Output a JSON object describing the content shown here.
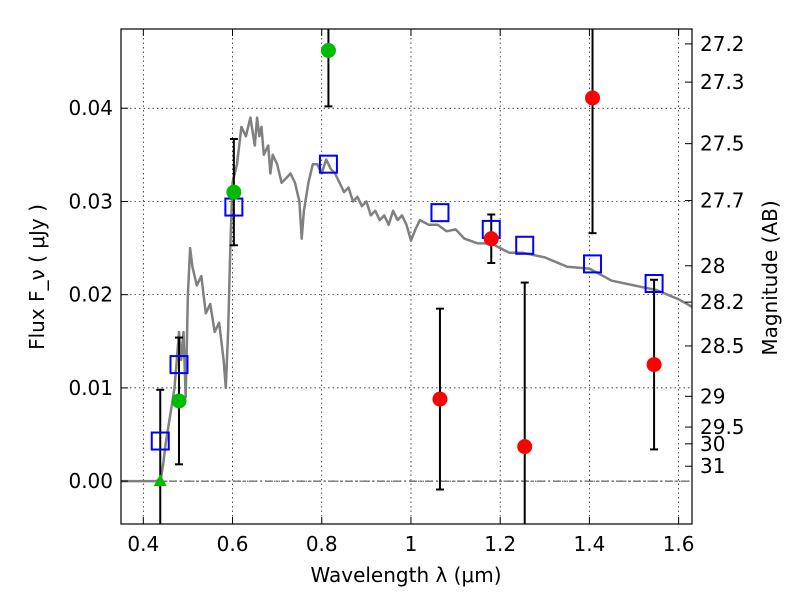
{
  "chart_data": {
    "type": "scatter",
    "xlabel": "Wavelength  λ (μm)",
    "ylabel": "Flux  F_ν  ( μJy )",
    "ylabel_right": "Magnitude (AB)",
    "xlim": [
      0.35,
      1.63
    ],
    "ylim": [
      -0.0046,
      0.0485
    ],
    "grid": true,
    "x_ticks": [
      {
        "value": 0.4,
        "label": "0.4"
      },
      {
        "value": 0.6,
        "label": "0.6"
      },
      {
        "value": 0.8,
        "label": "0.8"
      },
      {
        "value": 1.0,
        "label": "1"
      },
      {
        "value": 1.2,
        "label": "1.2"
      },
      {
        "value": 1.4,
        "label": "1.4"
      },
      {
        "value": 1.6,
        "label": "1.6"
      }
    ],
    "y_ticks": [
      {
        "value": 0.0,
        "label": "0.00"
      },
      {
        "value": 0.01,
        "label": "0.01"
      },
      {
        "value": 0.02,
        "label": "0.02"
      },
      {
        "value": 0.03,
        "label": "0.03"
      },
      {
        "value": 0.04,
        "label": "0.04"
      }
    ],
    "mag_ticks": [
      {
        "value": 0.0469,
        "label": "27.2"
      },
      {
        "value": 0.0428,
        "label": "27.3"
      },
      {
        "value": 0.0362,
        "label": "27.5"
      },
      {
        "value": 0.0301,
        "label": "27.7"
      },
      {
        "value": 0.0231,
        "label": "28"
      },
      {
        "value": 0.0192,
        "label": "28.2"
      },
      {
        "value": 0.0145,
        "label": "28.5"
      },
      {
        "value": 0.0091,
        "label": "29"
      },
      {
        "value": 0.0058,
        "label": "29.5"
      },
      {
        "value": 0.004,
        "label": "30"
      },
      {
        "value": 0.0016,
        "label": "31"
      }
    ],
    "series": [
      {
        "name": "model spectrum",
        "kind": "line",
        "color": "#808080",
        "x": [
          0.35,
          0.43,
          0.44,
          0.445,
          0.45,
          0.46,
          0.47,
          0.475,
          0.48,
          0.485,
          0.49,
          0.495,
          0.5,
          0.505,
          0.51,
          0.52,
          0.53,
          0.54,
          0.55,
          0.56,
          0.57,
          0.58,
          0.585,
          0.59,
          0.595,
          0.6,
          0.61,
          0.62,
          0.63,
          0.64,
          0.65,
          0.655,
          0.66,
          0.665,
          0.67,
          0.68,
          0.685,
          0.69,
          0.7,
          0.71,
          0.72,
          0.73,
          0.74,
          0.75,
          0.755,
          0.76,
          0.77,
          0.78,
          0.79,
          0.8,
          0.81,
          0.82,
          0.83,
          0.84,
          0.85,
          0.86,
          0.87,
          0.88,
          0.89,
          0.9,
          0.91,
          0.92,
          0.93,
          0.94,
          0.95,
          0.96,
          0.97,
          0.98,
          0.99,
          1.0,
          1.01,
          1.02,
          1.04,
          1.06,
          1.08,
          1.1,
          1.12,
          1.15,
          1.18,
          1.2,
          1.22,
          1.25,
          1.3,
          1.35,
          1.4,
          1.45,
          1.5,
          1.55,
          1.6,
          1.63
        ],
        "y": [
          0.0,
          0.0,
          0.0004,
          0.002,
          0.004,
          0.007,
          0.01,
          0.013,
          0.016,
          0.013,
          0.016,
          0.009,
          0.02,
          0.025,
          0.023,
          0.021,
          0.022,
          0.018,
          0.019,
          0.016,
          0.017,
          0.013,
          0.01,
          0.016,
          0.025,
          0.032,
          0.034,
          0.038,
          0.037,
          0.039,
          0.036,
          0.039,
          0.037,
          0.038,
          0.035,
          0.036,
          0.033,
          0.035,
          0.034,
          0.032,
          0.0325,
          0.033,
          0.032,
          0.03,
          0.026,
          0.029,
          0.032,
          0.034,
          0.034,
          0.033,
          0.0345,
          0.0335,
          0.033,
          0.032,
          0.031,
          0.0315,
          0.03,
          0.0305,
          0.0295,
          0.03,
          0.0285,
          0.029,
          0.028,
          0.0285,
          0.0275,
          0.029,
          0.028,
          0.0285,
          0.0275,
          0.0258,
          0.027,
          0.028,
          0.0275,
          0.0275,
          0.0268,
          0.027,
          0.026,
          0.0255,
          0.0255,
          0.025,
          0.0245,
          0.0245,
          0.024,
          0.023,
          0.0228,
          0.0215,
          0.021,
          0.0205,
          0.0195,
          0.0187
        ]
      },
      {
        "name": "model photometry",
        "kind": "open-square",
        "color": "#0000ff",
        "x": [
          0.438,
          0.48,
          0.603,
          0.815,
          1.065,
          1.18,
          1.255,
          1.407,
          1.545
        ],
        "y": [
          0.0043,
          0.0125,
          0.0294,
          0.034,
          0.0288,
          0.027,
          0.0253,
          0.0233,
          0.0212
        ]
      },
      {
        "name": "detections",
        "kind": "circle",
        "color": "#00bb00",
        "x": [
          0.48,
          0.603,
          0.815
        ],
        "y": [
          0.0086,
          0.031,
          0.0462
        ],
        "err": [
          0.0068,
          0.0057,
          0.006
        ]
      },
      {
        "name": "upper limit",
        "kind": "triangle",
        "color": "#00bb00",
        "x": [
          0.438
        ],
        "y": [
          0.0
        ],
        "err": [
          0.0098
        ]
      },
      {
        "name": "non-detections",
        "kind": "circle",
        "color": "#ff0000",
        "x": [
          1.065,
          1.18,
          1.255,
          1.407,
          1.545
        ],
        "y": [
          0.0088,
          0.026,
          0.0037,
          0.0411,
          0.0125
        ],
        "err": [
          0.0097,
          0.0026,
          0.0176,
          0.0145,
          0.0091
        ]
      }
    ]
  }
}
